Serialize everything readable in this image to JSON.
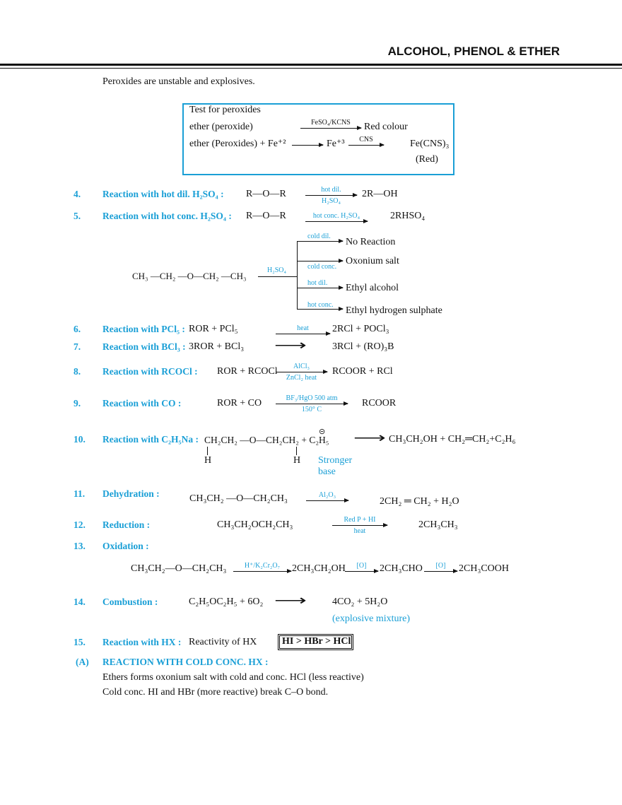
{
  "header": {
    "title": "ALCOHOL, PHENOL & ETHER"
  },
  "intro": "Peroxides are unstable and explosives.",
  "peroxide_box": {
    "title": "Test for peroxides",
    "r1_left": "ether (peroxide)",
    "r1_reagent": "FeSO₄/KCNS",
    "r1_right": "Red colour",
    "r2_left": "ether (Peroxides) + Fe⁺²",
    "r2_mid": "Fe⁺³",
    "r2_reagent": "CNS",
    "r2_right": "Fe(CNS)₃",
    "r2_note": "(Red)"
  },
  "r4": {
    "num": "4.",
    "label": "Reaction with hot dil. H₂SO₄ :",
    "reactant": "R—O—R",
    "top": "hot dil.",
    "bottom": "H₂SO₄",
    "product": "2R—OH"
  },
  "r5": {
    "num": "5.",
    "label": "Reaction with hot conc. H₂SO₄ :",
    "reactant": "R—O—R",
    "top": "hot conc. H₂SO₄",
    "product": "2RHSO₄"
  },
  "branch": {
    "reactant": "CH₃ —CH₂ —O—CH₂ —CH₃",
    "reagent": "H₂SO₄",
    "items": [
      {
        "cond": "cold dil.",
        "product": "No Reaction"
      },
      {
        "cond": "cold conc.",
        "product": "Oxonium salt"
      },
      {
        "cond": "hot dil.",
        "product": "Ethyl alcohol"
      },
      {
        "cond": "hot conc.",
        "product": "Ethyl hydrogen sulphate"
      }
    ]
  },
  "r6": {
    "num": "6.",
    "label": "Reaction with PCl₅ :",
    "reactant": "ROR + PCl₅",
    "top": "heat",
    "product": "2RCl + POCl₃"
  },
  "r7": {
    "num": "7.",
    "label": "Reaction with BCl₃ :",
    "reactant": "3ROR + BCl₃",
    "arrow": "⟶",
    "product": "3RCl + (RO)₃B"
  },
  "r8": {
    "num": "8.",
    "label": "Reaction with  RCOCl :",
    "reactant": "ROR + RCOCl",
    "top": "AlCl₃",
    "bottom": "ZnCl₂ heat",
    "product": "RCOOR + RCl"
  },
  "r9": {
    "num": "9.",
    "label": "Reaction with CO :",
    "reactant": "ROR + CO",
    "top": "BF₃/HgO 500 atm",
    "bottom": "150° C",
    "product": "RCOOR"
  },
  "r10": {
    "num": "10.",
    "label": "Reaction with C₂H₅Na :",
    "reactant": "CH₂CH₂ —O—CH₂CH₂ + C₂H₅",
    "charge": "⊝",
    "h1": "H",
    "h2": "H",
    "note1": "Stronger",
    "note2": "base",
    "arrow": "⟶",
    "product": "CH₃CH₂OH + CH₂═CH₂+C₂H₆"
  },
  "r11": {
    "num": "11.",
    "label": "Dehydration :",
    "reactant": "CH₃CH₂ —O—CH₂CH₃",
    "top": "Al₂O₃",
    "product": "2CH₂ ═ CH₂ + H₂O"
  },
  "r12": {
    "num": "12.",
    "label": "Reduction :",
    "reactant": "CH₃CH₂OCH₂CH₃",
    "top": "Red P + HI",
    "bottom": "heat",
    "product": "2CH₃CH₃"
  },
  "r13": {
    "num": "13.",
    "label": "Oxidation :",
    "s1": "CH₃CH₂—O—CH₂CH₃",
    "a1": "H⁺/K₂Cr₂O₇",
    "s2": "2CH₃CH₂OH",
    "a2": "[O]",
    "s3": "2CH₃CHO",
    "a3": "[O]",
    "s4": "2CH₃COOH"
  },
  "r14": {
    "num": "14.",
    "label": "Combustion :",
    "reactant": "C₂H₅OC₂H₅ + 6O₂",
    "arrow": "⟶",
    "product": "4CO₂ + 5H₂O",
    "note": "(explosive mixture)"
  },
  "r15": {
    "num": "15.",
    "label": "Reaction with HX :",
    "text": "Reactivity of HX",
    "order": "HI > HBr > HCl"
  },
  "secA": {
    "num": "(A)",
    "title": "REACTION WITH COLD CONC. HX :",
    "line1": "Ethers forms oxonium salt with cold and conc. HCl (less reactive)",
    "line2": "Cold conc. HI and HBr (more reactive) break C–O bond."
  }
}
